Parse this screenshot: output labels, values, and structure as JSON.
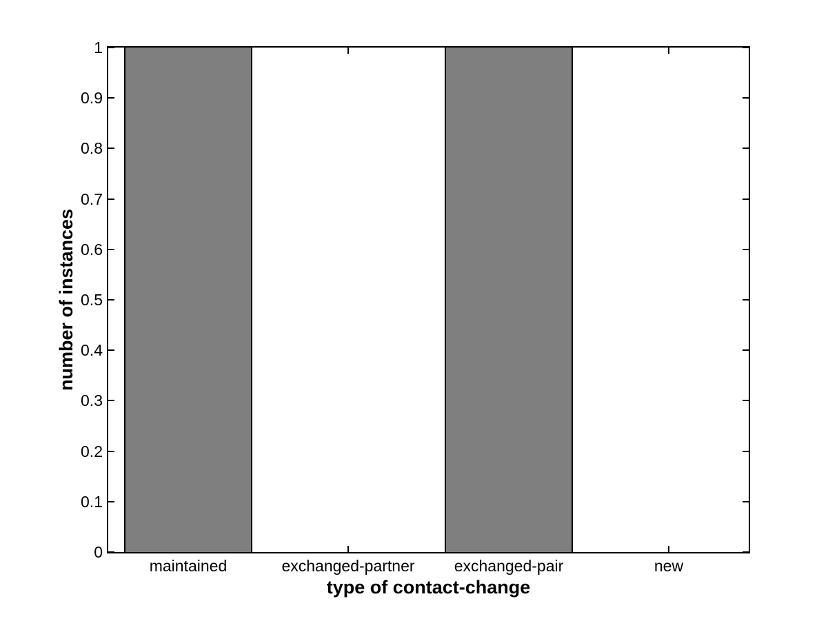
{
  "chart_data": {
    "type": "bar",
    "categories": [
      "maintained",
      "exchanged-partner",
      "exchanged-pair",
      "new"
    ],
    "values": [
      1,
      0,
      1,
      0
    ],
    "title": "",
    "xlabel": "type of contact-change",
    "ylabel": "number of instances",
    "ylim": [
      0,
      1
    ],
    "ytick_labels": [
      "0",
      "0.1",
      "0.2",
      "0.3",
      "0.4",
      "0.5",
      "0.6",
      "0.7",
      "0.8",
      "0.9",
      "1"
    ],
    "bar_width_fraction": 0.8,
    "grid": false,
    "legend": "none",
    "colors": {
      "bar_fill": "#7F7F7F",
      "bar_edge": "#000000",
      "axis": "#000000",
      "text": "#000000",
      "background": "#FFFFFF"
    }
  }
}
